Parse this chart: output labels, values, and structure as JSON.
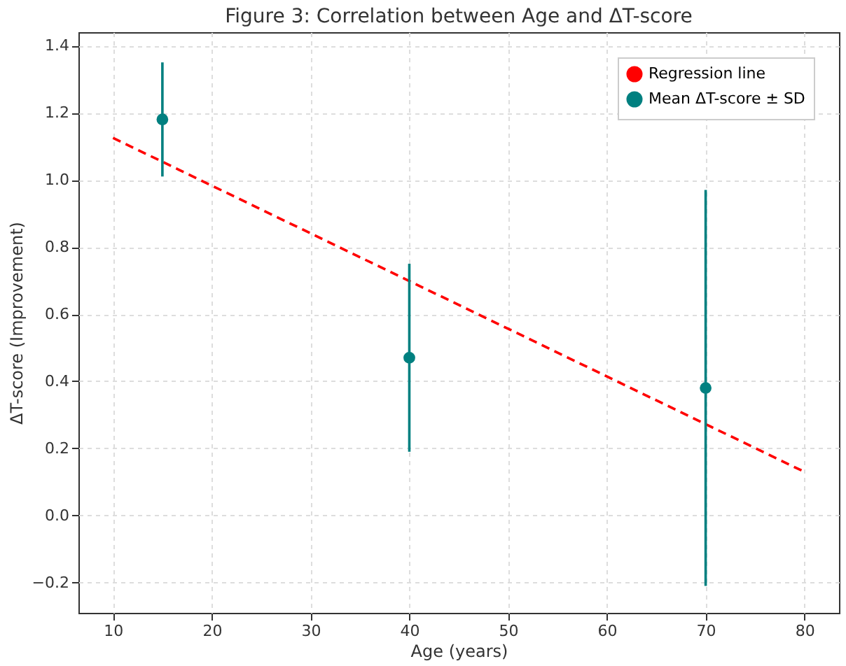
{
  "chart_data": {
    "type": "scatter",
    "title": "Figure 3: Correlation between Age and ΔT-score",
    "xlabel": "Age (years)",
    "ylabel": "ΔT-score (Improvement)",
    "series": [
      {
        "name": "Regression line",
        "type": "line",
        "color": "#ff0000",
        "line_style": "dashed",
        "marker": "none",
        "x": [
          10,
          80
        ],
        "values": [
          1.125,
          0.13
        ]
      },
      {
        "name": "Mean ΔT-score ± SD",
        "color": "#008080",
        "marker": "circle",
        "x": [
          15,
          40,
          70
        ],
        "values": [
          1.18,
          0.47,
          0.38
        ],
        "errors": [
          0.17,
          0.28,
          0.59
        ]
      }
    ],
    "xlim": [
      6.5,
      83.5
    ],
    "xticks": [
      10,
      20,
      30,
      40,
      50,
      60,
      70,
      80
    ],
    "ylim": [
      -0.29,
      1.44
    ],
    "yticks": [
      -0.2,
      {
        "value": 0,
        "label": "0.0"
      },
      0.2,
      0.4,
      0.6,
      0.8,
      {
        "value": 1,
        "label": "1.0"
      },
      1.2,
      1.4
    ],
    "grid": true,
    "legend": "top right"
  }
}
